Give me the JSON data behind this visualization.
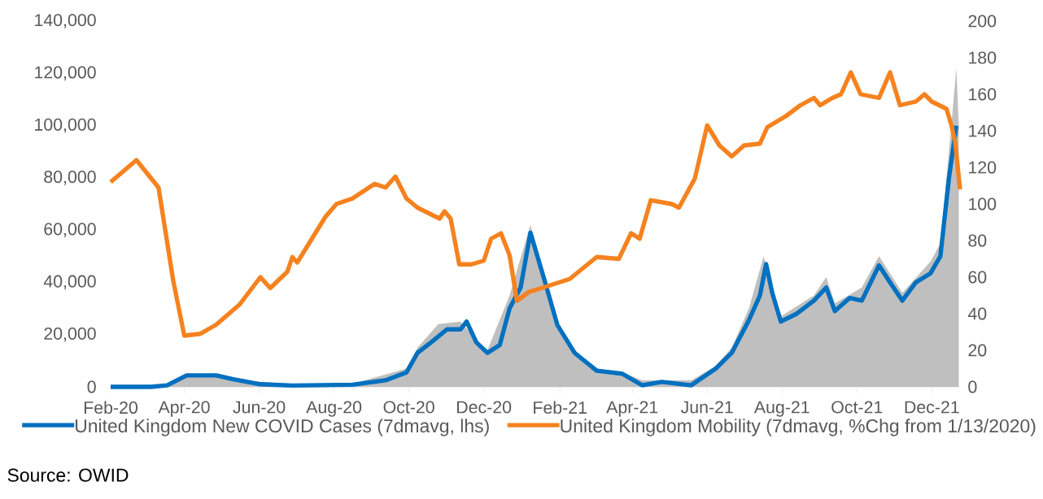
{
  "chart_data": {
    "type": "line",
    "xlim": [
      "2020-02-01",
      "2021-12-24"
    ],
    "xticks": [
      {
        "value": "2020-02-01",
        "label": "Feb-20"
      },
      {
        "value": "2020-04-01",
        "label": "Apr-20"
      },
      {
        "value": "2020-06-01",
        "label": "Jun-20"
      },
      {
        "value": "2020-08-01",
        "label": "Aug-20"
      },
      {
        "value": "2020-10-01",
        "label": "Oct-20"
      },
      {
        "value": "2020-12-01",
        "label": "Dec-20"
      },
      {
        "value": "2021-02-01",
        "label": "Feb-21"
      },
      {
        "value": "2021-04-01",
        "label": "Apr-21"
      },
      {
        "value": "2021-06-01",
        "label": "Jun-21"
      },
      {
        "value": "2021-08-01",
        "label": "Aug-21"
      },
      {
        "value": "2021-10-01",
        "label": "Oct-21"
      },
      {
        "value": "2021-12-01",
        "label": "Dec-21"
      }
    ],
    "ylim": [
      0,
      140000
    ],
    "yticks": [
      0,
      {
        "value": 20000,
        "label": "20,000"
      },
      {
        "value": 40000,
        "label": "40,000"
      },
      {
        "value": 60000,
        "label": "60,000"
      },
      {
        "value": 80000,
        "label": "80,000"
      },
      {
        "value": 100000,
        "label": "100,000"
      },
      {
        "value": 120000,
        "label": "120,000"
      },
      {
        "value": 140000,
        "label": "140,000"
      }
    ],
    "y2lim": [
      0,
      200
    ],
    "y2ticks": [
      0,
      20,
      40,
      60,
      80,
      100,
      120,
      140,
      160,
      180,
      200
    ],
    "legend": "bottom",
    "series": [
      {
        "type": "area",
        "color": "#bfbfbf",
        "x": [
          "2020-02-01",
          "2020-03-18",
          "2020-04-10",
          "2020-04-27",
          "2020-05-20",
          "2020-06-28",
          "2020-08-16",
          "2020-09-29",
          "2020-10-08",
          "2020-10-25",
          "2020-11-12",
          "2020-11-25",
          "2020-12-04",
          "2020-12-22",
          "2021-01-08",
          "2021-01-20",
          "2021-01-30",
          "2021-02-13",
          "2021-03-03",
          "2021-03-24",
          "2021-04-09",
          "2021-05-19",
          "2021-06-08",
          "2021-06-21",
          "2021-07-05",
          "2021-07-17",
          "2021-07-24",
          "2021-07-31",
          "2021-08-27",
          "2021-09-06",
          "2021-09-13",
          "2021-10-05",
          "2021-10-19",
          "2021-11-07",
          "2021-11-30",
          "2021-12-08",
          "2021-12-15",
          "2021-12-21",
          "2021-12-23"
        ],
        "values": [
          0,
          1000,
          5000,
          5000,
          2500,
          800,
          1200,
          7000,
          15000,
          24000,
          25000,
          18000,
          14000,
          35000,
          62000,
          42000,
          25000,
          14000,
          7000,
          5500,
          2500,
          2500,
          8000,
          15000,
          30000,
          50000,
          38000,
          27000,
          35000,
          42000,
          32000,
          38000,
          50000,
          36000,
          48000,
          55000,
          90000,
          122000,
          100000
        ]
      },
      {
        "name": "United Kingdom New COVID Cases (7dmavg, lhs)",
        "color": "#0070c0",
        "x": [
          "2020-02-01",
          "2020-03-05",
          "2020-03-18",
          "2020-04-03",
          "2020-04-27",
          "2020-05-10",
          "2020-06-02",
          "2020-06-28",
          "2020-08-16",
          "2020-09-12",
          "2020-09-29",
          "2020-10-08",
          "2020-10-19",
          "2020-11-01",
          "2020-11-12",
          "2020-11-17",
          "2020-11-25",
          "2020-12-04",
          "2020-12-14",
          "2020-12-22",
          "2020-12-31",
          "2021-01-08",
          "2021-01-20",
          "2021-01-30",
          "2021-02-13",
          "2021-03-03",
          "2021-03-24",
          "2021-04-09",
          "2021-04-25",
          "2021-05-19",
          "2021-06-08",
          "2021-06-21",
          "2021-07-05",
          "2021-07-14",
          "2021-07-19",
          "2021-07-24",
          "2021-07-31",
          "2021-08-13",
          "2021-08-27",
          "2021-09-06",
          "2021-09-13",
          "2021-09-25",
          "2021-10-05",
          "2021-10-19",
          "2021-10-28",
          "2021-11-07",
          "2021-11-18",
          "2021-11-30",
          "2021-12-08",
          "2021-12-15",
          "2021-12-21"
        ],
        "values": [
          0,
          0,
          600,
          4400,
          4400,
          3000,
          1000,
          500,
          800,
          2500,
          5500,
          13000,
          17000,
          22000,
          22000,
          25000,
          17000,
          13000,
          16000,
          30000,
          38000,
          59000,
          40000,
          23600,
          13000,
          6200,
          5000,
          600,
          1900,
          600,
          7000,
          13000,
          25500,
          35000,
          47000,
          36000,
          25000,
          28000,
          33000,
          38000,
          29000,
          34000,
          33000,
          46500,
          40000,
          33000,
          40000,
          43500,
          50000,
          80000,
          100000
        ]
      },
      {
        "name": "United Kingdom Mobility (7dmavg, %Chg from 1/13/2020)",
        "color": "#f5821f",
        "axis": "y2",
        "x": [
          "2020-02-01",
          "2020-02-22",
          "2020-03-11",
          "2020-03-23",
          "2020-04-01",
          "2020-04-14",
          "2020-04-27",
          "2020-05-16",
          "2020-06-02",
          "2020-06-10",
          "2020-06-24",
          "2020-06-28",
          "2020-07-02",
          "2020-07-25",
          "2020-08-03",
          "2020-08-16",
          "2020-09-03",
          "2020-09-12",
          "2020-09-20",
          "2020-09-29",
          "2020-10-08",
          "2020-10-26",
          "2020-10-30",
          "2020-11-04",
          "2020-11-11",
          "2020-11-21",
          "2020-12-01",
          "2020-12-07",
          "2020-12-15",
          "2020-12-22",
          "2020-12-28",
          "2021-01-07",
          "2021-01-17",
          "2021-02-09",
          "2021-03-03",
          "2021-03-21",
          "2021-03-31",
          "2021-04-07",
          "2021-04-16",
          "2021-05-03",
          "2021-05-09",
          "2021-05-22",
          "2021-06-01",
          "2021-06-11",
          "2021-06-21",
          "2021-07-01",
          "2021-07-14",
          "2021-07-20",
          "2021-08-04",
          "2021-08-16",
          "2021-08-27",
          "2021-09-01",
          "2021-09-11",
          "2021-09-18",
          "2021-09-26",
          "2021-10-04",
          "2021-10-19",
          "2021-10-28",
          "2021-11-05",
          "2021-11-18",
          "2021-11-25",
          "2021-12-01",
          "2021-12-13",
          "2021-12-17",
          "2021-12-20",
          "2021-12-24"
        ],
        "values": [
          112,
          124,
          109,
          58,
          28,
          29,
          34,
          45,
          60,
          54,
          63,
          71,
          68,
          93,
          100,
          103,
          111,
          109,
          115,
          103,
          98,
          92,
          96,
          92,
          67,
          67,
          69,
          81,
          84,
          72,
          47,
          52,
          54,
          59,
          71,
          70,
          84,
          81,
          102,
          100,
          98,
          114,
          143,
          132,
          126,
          132,
          133,
          142,
          148,
          154,
          158,
          154,
          158,
          160,
          172,
          160,
          158,
          172,
          154,
          156,
          160,
          156,
          152,
          143,
          134,
          108
        ]
      }
    ],
    "annotations": [
      "Source: OWID"
    ]
  }
}
